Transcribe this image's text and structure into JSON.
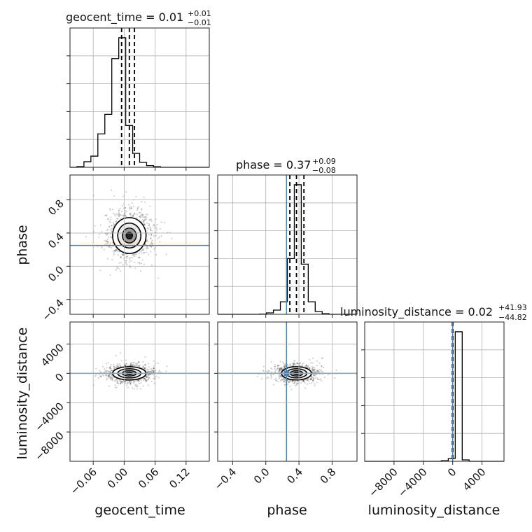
{
  "chart_data": {
    "type": "corner",
    "parameters": [
      {
        "name": "geocent_time",
        "title": {
          "label": "geocent_time = 0.01",
          "plus": "+0.01",
          "minus": "−0.01"
        },
        "range": [
          -0.105,
          0.165
        ],
        "ticks": [
          -0.06,
          0.0,
          0.06,
          0.12
        ],
        "tick_labels": [
          "−0.06",
          "0.00",
          "0.06",
          "0.12"
        ],
        "quantiles": [
          -0.005,
          0.01,
          0.02
        ],
        "histogram": {
          "edges": [
            -0.105,
            -0.0915,
            -0.078,
            -0.0645,
            -0.051,
            -0.0375,
            -0.024,
            -0.0105,
            0.003,
            0.0165,
            0.03,
            0.0435,
            0.057,
            0.0705,
            0.084,
            0.0975,
            0.111,
            0.1245,
            0.138,
            0.1515,
            0.165
          ],
          "counts": [
            0,
            0.005,
            0.04,
            0.08,
            0.24,
            0.38,
            0.78,
            0.93,
            0.3,
            0.1,
            0.035,
            0.012,
            0.004,
            0,
            0,
            0,
            0,
            0,
            0,
            0
          ]
        }
      },
      {
        "name": "phase",
        "title": {
          "label": "phase = 0.37",
          "plus": "+0.09",
          "minus": "−0.08"
        },
        "range": [
          -0.58,
          1.1
        ],
        "ticks": [
          -0.4,
          0.0,
          0.4,
          0.8
        ],
        "tick_labels": [
          "−0.4",
          "0.0",
          "0.4",
          "0.8"
        ],
        "quantiles": [
          0.29,
          0.37,
          0.46
        ],
        "truth": 0.25,
        "histogram": {
          "edges": [
            -0.58,
            -0.496,
            -0.412,
            -0.328,
            -0.244,
            -0.16,
            -0.076,
            0.008,
            0.092,
            0.176,
            0.26,
            0.344,
            0.428,
            0.512,
            0.596,
            0.68,
            0.764,
            0.848,
            0.932,
            1.016,
            1.1
          ],
          "counts": [
            0,
            0,
            0,
            0,
            0,
            0,
            0.002,
            0.01,
            0.03,
            0.09,
            0.4,
            0.93,
            0.36,
            0.09,
            0.02,
            0.004,
            0,
            0,
            0,
            0
          ]
        }
      },
      {
        "name": "luminosity_distance",
        "title": {
          "label": "luminosity_distance = 0.02",
          "plus": "+41.93",
          "minus": "−44.82"
        },
        "range": [
          -12000,
          7000
        ],
        "ticks": [
          -8000,
          -4000,
          0,
          4000
        ],
        "tick_labels": [
          "−8000",
          "−4000",
          "0",
          "4000"
        ],
        "quantiles": [
          -44.82,
          0.02,
          41.93
        ],
        "truth": 0,
        "histogram": {
          "edges": [
            -12000,
            -11050,
            -10100,
            -9150,
            -8200,
            -7250,
            -6300,
            -5350,
            -4400,
            -3450,
            -2500,
            -1550,
            -600,
            350,
            1300,
            2250,
            3200,
            4150,
            5100,
            6050,
            7000
          ],
          "counts": [
            0,
            0,
            0,
            0,
            0,
            0,
            0,
            0,
            0,
            0,
            0,
            0.004,
            0.02,
            0.93,
            0.01,
            0,
            0,
            0,
            0,
            0
          ]
        }
      }
    ],
    "pairs": [
      {
        "x": "geocent_time",
        "y": "phase",
        "center": [
          0.01,
          0.37
        ],
        "spread": [
          0.018,
          0.12
        ],
        "truth_h": 0.25,
        "yticks": [
          -0.4,
          0.0,
          0.4,
          0.8
        ],
        "ytick_labels": [
          "−0.4",
          "0.0",
          "0.4",
          "0.8"
        ]
      },
      {
        "x": "geocent_time",
        "y": "luminosity_distance",
        "center": [
          0.01,
          0
        ],
        "spread": [
          0.018,
          500
        ],
        "truth_h": 0,
        "yticks": [
          -8000,
          -4000,
          0,
          4000
        ],
        "ytick_labels": [
          "−8000",
          "−4000",
          "0",
          "4000"
        ]
      },
      {
        "x": "phase",
        "y": "luminosity_distance",
        "center": [
          0.37,
          0
        ],
        "spread": [
          0.1,
          500
        ],
        "truth_v": 0.25,
        "truth_h": 0,
        "truth_point": [
          0.25,
          0
        ]
      }
    ],
    "axis_labels": {
      "bottom": [
        "geocent_time",
        "phase",
        "luminosity_distance"
      ],
      "left": [
        "phase",
        "luminosity_distance"
      ]
    },
    "colors": {
      "truth": "#4682b4",
      "hist": "#000000",
      "grid": "#b0b0b0"
    },
    "grid": true
  }
}
